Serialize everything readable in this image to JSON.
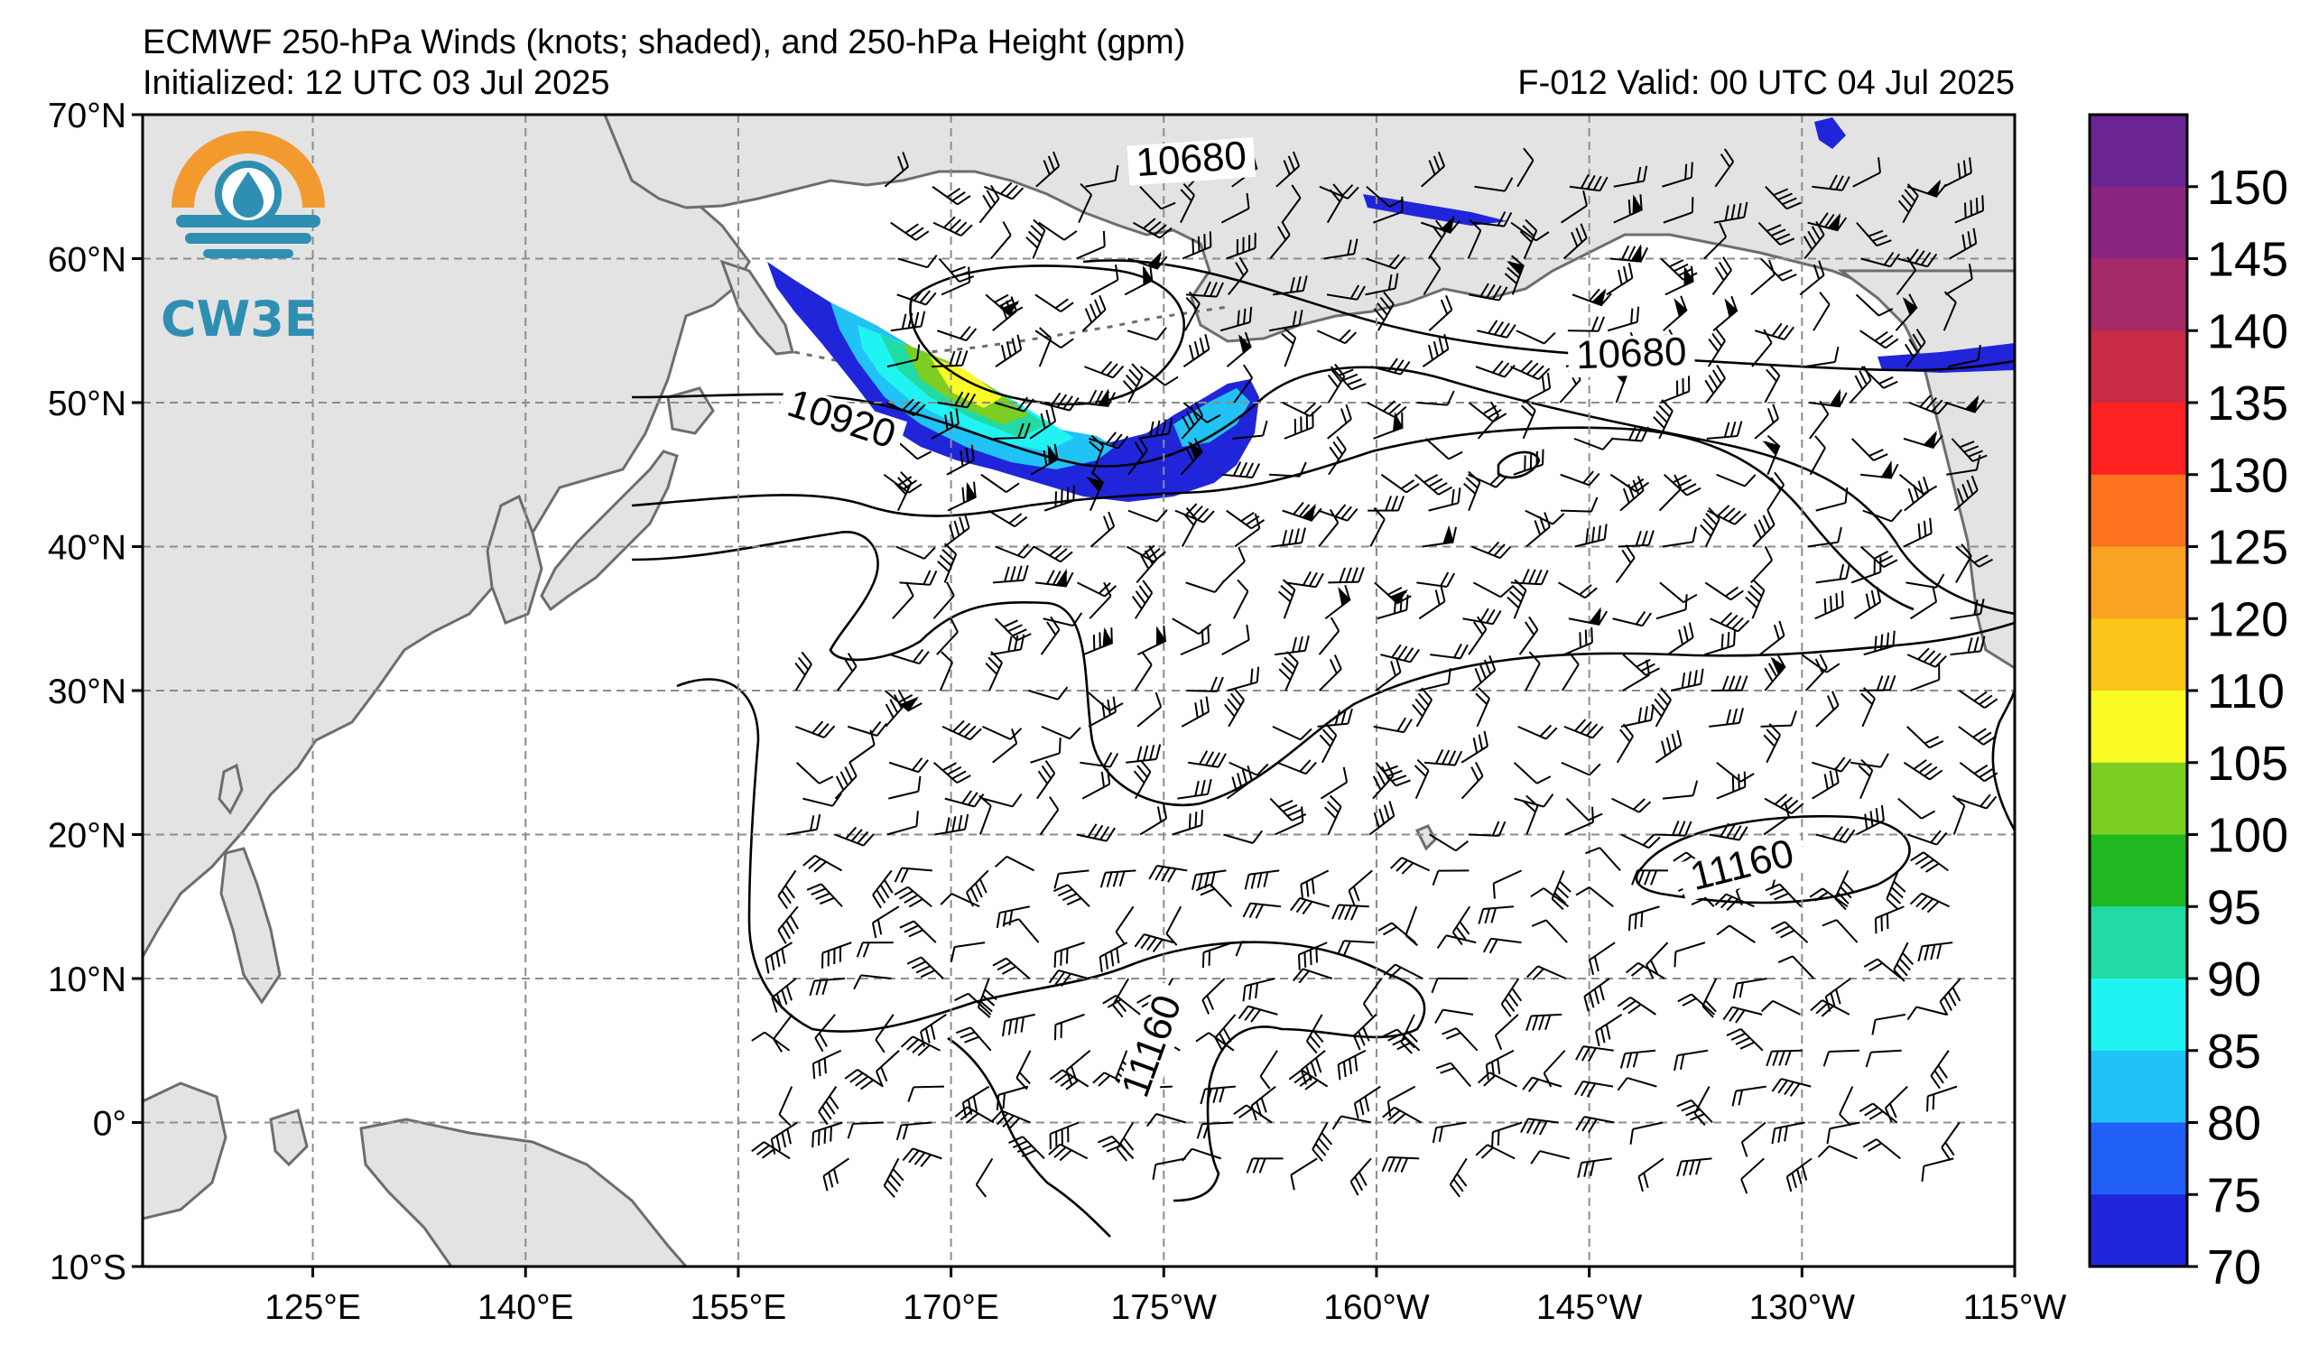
{
  "header": {
    "title": "ECMWF 250-hPa Winds (knots; shaded), and 250-hPa Height (gpm)",
    "initialized": "Initialized: 12 UTC 03 Jul 2025",
    "valid": "F-012  Valid: 00 UTC 04 Jul 2025"
  },
  "logo": {
    "text": "CW3E",
    "colors": [
      "#f39a2e",
      "#2f8fb3"
    ]
  },
  "map": {
    "projection": "plate-carree",
    "lon_range_east": [
      113,
      245
    ],
    "lat_range": [
      -10,
      70
    ],
    "grid": true,
    "lat_labels": [
      "70°N",
      "60°N",
      "50°N",
      "40°N",
      "30°N",
      "20°N",
      "10°N",
      "0°",
      "10°S"
    ],
    "lon_labels": [
      "125°E",
      "140°E",
      "155°E",
      "170°E",
      "175°W",
      "160°W",
      "145°W",
      "130°W",
      "115°W"
    ],
    "contour_labels": [
      {
        "text": "10680",
        "lon": 187,
        "lat": 66
      },
      {
        "text": "10680",
        "lon": 218,
        "lat": 52.5
      },
      {
        "text": "10920",
        "lon": 162,
        "lat": 48
      },
      {
        "text": "11160",
        "lon": 226,
        "lat": 17
      },
      {
        "text": "11160",
        "lon": 185,
        "lat": 5
      }
    ]
  },
  "colorbar": {
    "labels": [
      "150",
      "145",
      "140",
      "135",
      "130",
      "125",
      "120",
      "110",
      "105",
      "100",
      "95",
      "90",
      "85",
      "80",
      "75",
      "70"
    ],
    "colors": [
      "#6b2593",
      "#8b2582",
      "#a62a6a",
      "#c92b45",
      "#ff2222",
      "#fd7321",
      "#f8a321",
      "#fbc519",
      "#fafb25",
      "#7cce22",
      "#21b721",
      "#22daa3",
      "#21f3f3",
      "#21c2f5",
      "#2160f7",
      "#2125d9"
    ],
    "units": "knots"
  },
  "style": {
    "land": "#e3e3e3",
    "coast": "#6d6d6d",
    "grid": "#8c8c8c"
  }
}
